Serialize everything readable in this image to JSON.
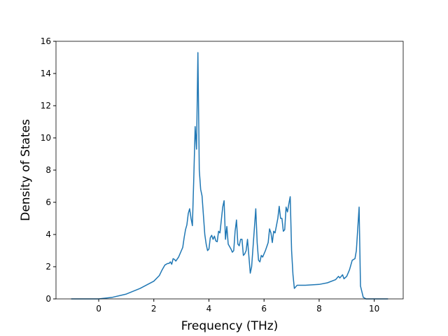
{
  "chart_data": {
    "type": "line",
    "xlabel": "Frequency (THz)",
    "ylabel": "Density of States",
    "color": "#1f77b4",
    "grid": false,
    "xlim": [
      -1.55,
      11.05
    ],
    "ylim": [
      0,
      16
    ],
    "xticks": [
      0,
      2,
      4,
      6,
      8,
      10
    ],
    "yticks": [
      0,
      2,
      4,
      6,
      8,
      10,
      12,
      14,
      16
    ],
    "x": [
      -1,
      0,
      0.5,
      1,
      1.5,
      2,
      2.2,
      2.3,
      2.4,
      2.5,
      2.55,
      2.6,
      2.65,
      2.7,
      2.75,
      2.8,
      2.9,
      3.0,
      3.05,
      3.1,
      3.15,
      3.2,
      3.25,
      3.3,
      3.35,
      3.4,
      3.45,
      3.5,
      3.55,
      3.6,
      3.65,
      3.7,
      3.75,
      3.8,
      3.85,
      3.9,
      3.95,
      4.0,
      4.05,
      4.1,
      4.15,
      4.2,
      4.25,
      4.3,
      4.35,
      4.4,
      4.5,
      4.55,
      4.6,
      4.65,
      4.7,
      4.8,
      4.85,
      4.9,
      4.95,
      5.0,
      5.05,
      5.1,
      5.15,
      5.2,
      5.25,
      5.3,
      5.35,
      5.4,
      5.5,
      5.55,
      5.7,
      5.75,
      5.8,
      5.85,
      5.9,
      5.95,
      6.05,
      6.15,
      6.2,
      6.25,
      6.3,
      6.35,
      6.4,
      6.5,
      6.55,
      6.6,
      6.65,
      6.7,
      6.75,
      6.8,
      6.85,
      6.9,
      6.95,
      7.0,
      7.05,
      7.1,
      7.2,
      7.5,
      8.0,
      8.3,
      8.6,
      8.7,
      8.75,
      8.85,
      8.9,
      9.0,
      9.1,
      9.2,
      9.3,
      9.35,
      9.45,
      9.5,
      9.6,
      9.7,
      10.5
    ],
    "values": [
      0,
      0,
      0.1,
      0.3,
      0.65,
      1.1,
      1.45,
      1.8,
      2.1,
      2.2,
      2.2,
      2.3,
      2.15,
      2.5,
      2.45,
      2.35,
      2.6,
      3.0,
      3.2,
      3.8,
      4.3,
      4.6,
      5.3,
      5.6,
      5.0,
      4.55,
      7.5,
      10.7,
      9.3,
      15.3,
      8.0,
      6.8,
      6.4,
      5.2,
      4.0,
      3.4,
      3.0,
      3.1,
      3.8,
      3.95,
      3.7,
      3.9,
      3.6,
      3.55,
      4.2,
      4.1,
      5.7,
      6.1,
      3.7,
      4.5,
      3.4,
      3.1,
      2.9,
      3.0,
      4.2,
      4.9,
      3.4,
      3.3,
      3.7,
      3.7,
      2.7,
      2.8,
      3.0,
      3.7,
      1.6,
      2.0,
      5.6,
      3.5,
      2.4,
      2.3,
      2.7,
      2.6,
      3.0,
      3.5,
      4.35,
      4.1,
      3.5,
      4.2,
      4.1,
      5.0,
      5.75,
      5.0,
      5.0,
      4.2,
      4.3,
      5.7,
      5.4,
      5.9,
      6.35,
      3.0,
      1.5,
      0.65,
      0.85,
      0.85,
      0.9,
      1.0,
      1.2,
      1.4,
      1.3,
      1.5,
      1.25,
      1.4,
      1.8,
      2.4,
      2.5,
      3.0,
      5.7,
      0.8,
      0.1,
      0,
      0
    ]
  }
}
